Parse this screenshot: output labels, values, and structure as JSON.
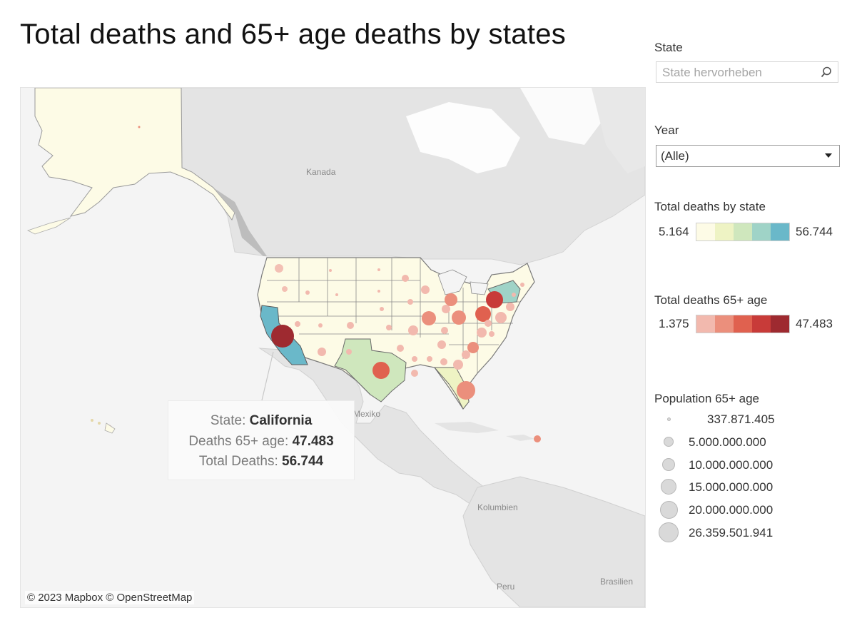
{
  "page": {
    "title": "Total deaths and 65+ age deaths by states"
  },
  "filters": {
    "state": {
      "label": "State",
      "placeholder": "State hervorheben"
    },
    "year": {
      "label": "Year",
      "selected": "(Alle)"
    }
  },
  "legend_total_deaths": {
    "title": "Total deaths by state",
    "min": "5.164",
    "max": "56.744",
    "colors": [
      "#fdfbe6",
      "#eef3c4",
      "#cfe7bd",
      "#9fd3c7",
      "#6ab8c9"
    ]
  },
  "legend_deaths_65": {
    "title": "Total deaths 65+ age",
    "min": "1.375",
    "max": "47.483",
    "colors": [
      "#f2b9ae",
      "#eb8f7c",
      "#e0614f",
      "#c83b39",
      "#9e2a30"
    ]
  },
  "legend_population": {
    "title": "Population 65+ age",
    "items": [
      {
        "label": "337.871.405",
        "size": 0.12
      },
      {
        "label": "5.000.000.000",
        "size": 0.5
      },
      {
        "label": "10.000.000.000",
        "size": 0.65
      },
      {
        "label": "15.000.000.000",
        "size": 0.78
      },
      {
        "label": "20.000.000.000",
        "size": 0.9
      },
      {
        "label": "26.359.501.941",
        "size": 1.0
      }
    ]
  },
  "map": {
    "labels": {
      "canada": "Kanada",
      "mexico": "Mexiko",
      "colombia": "Kolumbien",
      "peru": "Peru",
      "brazil": "Brasilien"
    },
    "attribution": "© 2023 Mapbox  © OpenStreetMap",
    "highlight_state_color": "#6ab8c9",
    "states_base_color": "#fdfbe6",
    "texas_color": "#cfe7bd",
    "ohio_ny_color": "#9fd3c7"
  },
  "tooltip": {
    "state_label": "State: ",
    "state_value": "California",
    "deaths65_label": "Deaths 65+ age: ",
    "deaths65_value": "47.483",
    "total_label": "Total Deaths: ",
    "total_value": "56.744"
  }
}
